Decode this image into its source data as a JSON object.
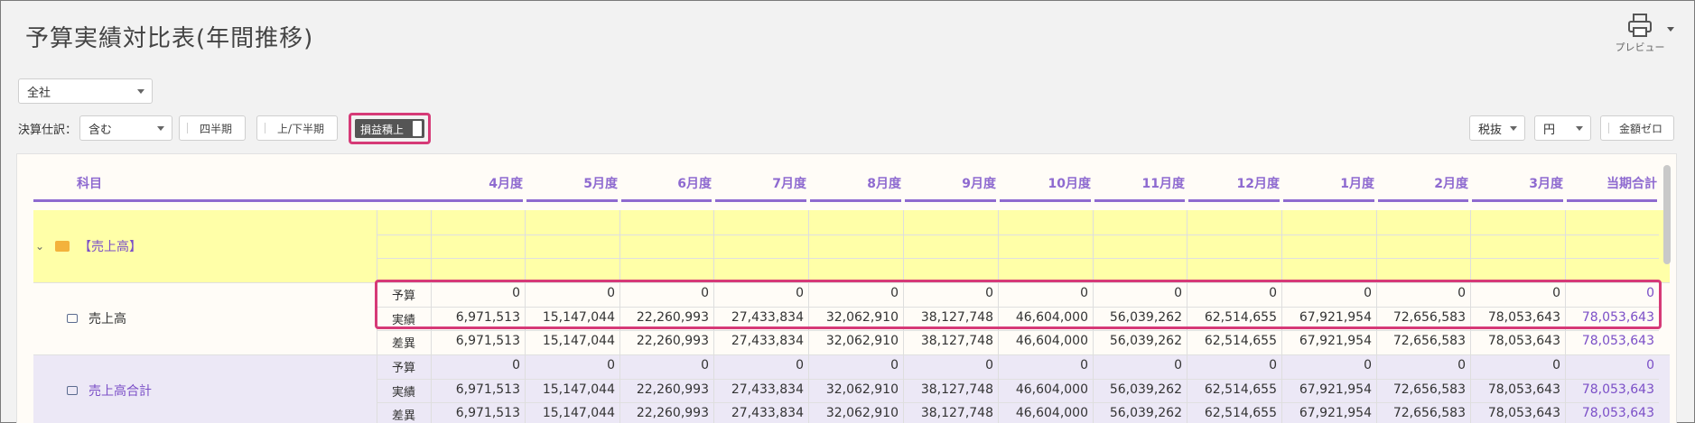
{
  "page": {
    "title": "予算実績対比表(年間推移)"
  },
  "toolbar": {
    "preview_label": "プレビュー",
    "company_select": "全社",
    "settlement_label": "決算仕訳：",
    "settlement_select": "含む",
    "quarter_button": "四半期",
    "half_button": "上/下半期",
    "pl_toggle": "損益積上",
    "tax_select": "税抜",
    "unit_select": "円",
    "zero_button": "金額ゼロ"
  },
  "table": {
    "headers": [
      "科目",
      "4月度",
      "5月度",
      "6月度",
      "7月度",
      "8月度",
      "9月度",
      "10月度",
      "11月度",
      "12月度",
      "1月度",
      "2月度",
      "3月度",
      "当期合計"
    ],
    "group": {
      "label": "【売上高】"
    },
    "rows": [
      {
        "label": "売上高",
        "lines": [
          {
            "type": "予算",
            "values": [
              "0",
              "0",
              "0",
              "0",
              "0",
              "0",
              "0",
              "0",
              "0",
              "0",
              "0",
              "0",
              "0"
            ]
          },
          {
            "type": "実績",
            "values": [
              "6,971,513",
              "15,147,044",
              "22,260,993",
              "27,433,834",
              "32,062,910",
              "38,127,748",
              "46,604,000",
              "56,039,262",
              "62,514,655",
              "67,921,954",
              "72,656,583",
              "78,053,643",
              "78,053,643"
            ]
          },
          {
            "type": "差異",
            "values": [
              "6,971,513",
              "15,147,044",
              "22,260,993",
              "27,433,834",
              "32,062,910",
              "38,127,748",
              "46,604,000",
              "56,039,262",
              "62,514,655",
              "67,921,954",
              "72,656,583",
              "78,053,643",
              "78,053,643"
            ]
          }
        ]
      },
      {
        "label": "売上高合計",
        "lines": [
          {
            "type": "予算",
            "values": [
              "0",
              "0",
              "0",
              "0",
              "0",
              "0",
              "0",
              "0",
              "0",
              "0",
              "0",
              "0",
              "0"
            ]
          },
          {
            "type": "実績",
            "values": [
              "6,971,513",
              "15,147,044",
              "22,260,993",
              "27,433,834",
              "32,062,910",
              "38,127,748",
              "46,604,000",
              "56,039,262",
              "62,514,655",
              "67,921,954",
              "72,656,583",
              "78,053,643",
              "78,053,643"
            ]
          },
          {
            "type": "差異",
            "values": [
              "6,971,513",
              "15,147,044",
              "22,260,993",
              "27,433,834",
              "32,062,910",
              "38,127,748",
              "46,604,000",
              "56,039,262",
              "62,514,655",
              "67,921,954",
              "72,656,583",
              "78,053,643",
              "78,053,643"
            ]
          }
        ]
      }
    ]
  },
  "colors": {
    "accent": "#8e6ad0",
    "highlight": "#d63a77",
    "group_band": "#ffffa8",
    "total_band": "#ece8f6",
    "total_value": "#7b4fc7"
  },
  "icons": {
    "preview": "printer-icon",
    "group_toggle": "chevron-down-icon",
    "group_folder": "folder-open-icon",
    "account": "account-icon",
    "total": "total-icon"
  }
}
